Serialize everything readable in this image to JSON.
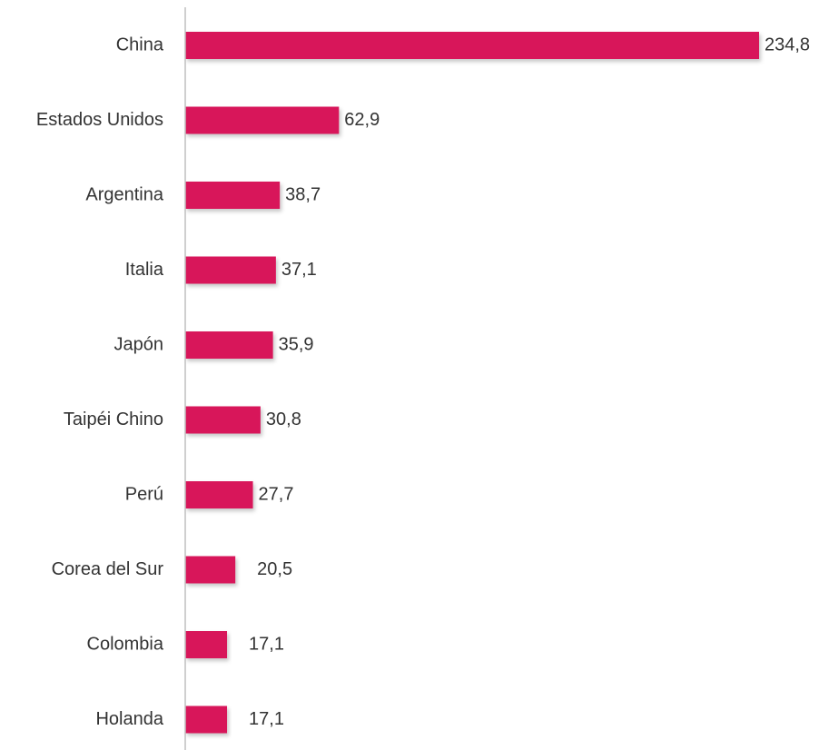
{
  "chart_data": {
    "type": "bar",
    "orientation": "horizontal",
    "categories": [
      "China",
      "Estados Unidos",
      "Argentina",
      "Italia",
      "Japón",
      "Taipéi Chino",
      "Perú",
      "Corea del Sur",
      "Colombia",
      "Holanda"
    ],
    "values": [
      234.8,
      62.9,
      38.7,
      37.1,
      35.9,
      30.8,
      27.7,
      20.5,
      17.1,
      17.1
    ],
    "value_labels": [
      "234,8",
      "62,9",
      "38,7",
      "37,1",
      "35,9",
      "30,8",
      "27,7",
      "20,5",
      "17,1",
      "17,1"
    ],
    "title": "",
    "xlabel": "",
    "ylabel": "",
    "xlim": [
      0,
      234.8
    ],
    "grid": false,
    "legend": "none",
    "colors": {
      "bar": "#D8135A",
      "axis": "#BFBFBF",
      "text": "#333333"
    }
  }
}
